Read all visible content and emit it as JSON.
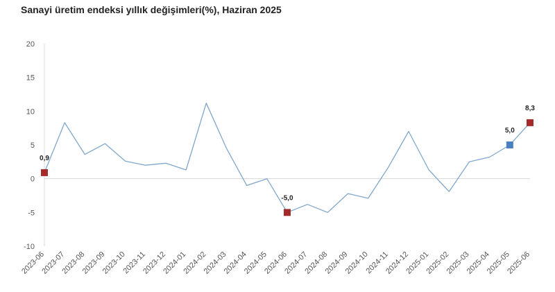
{
  "chart_data": {
    "type": "line",
    "title": "Sanayi üretim endeksi yıllık değişimleri(%), Haziran 2025",
    "xlabel": "",
    "ylabel": "",
    "ylim": [
      -10,
      20
    ],
    "yticks": [
      -10,
      -5,
      0,
      5,
      10,
      15,
      20
    ],
    "grid": false,
    "categories": [
      "2023-06",
      "2023-07",
      "2023-08",
      "2023-09",
      "2023-10",
      "2023-11",
      "2023-12",
      "2024-01",
      "2024-02",
      "2024-03",
      "2024-04",
      "2024-05",
      "2024-06",
      "2024-07",
      "2024-08",
      "2024-09",
      "2024-10",
      "2024-11",
      "2024-12",
      "2025-01",
      "2025-02",
      "2025-03",
      "2025-04",
      "2025-05",
      "2025-06"
    ],
    "series": [
      {
        "color": "#7fa7cc",
        "values": [
          0.9,
          8.3,
          3.6,
          5.2,
          2.6,
          2.0,
          2.3,
          1.3,
          11.2,
          4.5,
          -1.0,
          0.0,
          -5.0,
          -3.8,
          -5.0,
          -2.2,
          -2.9,
          1.7,
          7.0,
          1.3,
          -1.9,
          2.5,
          3.2,
          5.0,
          8.3
        ]
      }
    ],
    "highlights": [
      {
        "index": 0,
        "label": "0,9",
        "color": "#a52a2a"
      },
      {
        "index": 12,
        "label": "-5,0",
        "color": "#a52a2a"
      },
      {
        "index": 23,
        "label": "5,0",
        "color": "#4a7fc1"
      },
      {
        "index": 24,
        "label": "8,3",
        "color": "#a52a2a"
      }
    ],
    "axis_color": "#d9d9d9"
  }
}
